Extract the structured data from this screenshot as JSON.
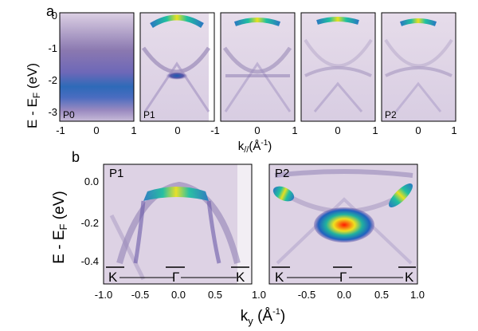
{
  "panel_a": {
    "label": "a",
    "ylabel": "E - E",
    "ylabel_sub": "F",
    "ylabel_unit": " (eV)",
    "yticks": [
      "0",
      "-1",
      "-2",
      "-3"
    ],
    "xticks": [
      "-1",
      "0",
      "1"
    ],
    "xlabel_main": "k",
    "xlabel_sub": "//",
    "xlabel_unit_open": "(Å",
    "xlabel_sup": "-1",
    "xlabel_unit_close": ")",
    "subpanels": [
      {
        "tag": "P0"
      },
      {
        "tag": "P1"
      },
      {
        "tag": ""
      },
      {
        "tag": ""
      },
      {
        "tag": "P2"
      }
    ]
  },
  "panel_b": {
    "label": "b",
    "ylabel": "E - E",
    "ylabel_sub": "F",
    "ylabel_unit": " (eV)",
    "yticks": [
      "0.0",
      "-0.2",
      "-0.4"
    ],
    "xticks": [
      "-1.0",
      "-0.5",
      "0.0",
      "0.5",
      "1.0"
    ],
    "xlabel_main": "k",
    "xlabel_sub": "y",
    "xlabel_unit_open": " (Å",
    "xlabel_sup": "-1",
    "xlabel_unit_close": ")",
    "subpanels": [
      {
        "tag": "P1",
        "k_left": "K",
        "k_mid": "Γ",
        "k_right": "K"
      },
      {
        "tag": "P2",
        "k_left": "K",
        "k_mid": "Γ",
        "k_right": "K"
      }
    ]
  },
  "colors": {
    "background": "#e8dfea",
    "band_low": "#8c7aa8",
    "band_high": "#1a8fb8",
    "peak": "#f0e020",
    "hot": "#e02010"
  }
}
